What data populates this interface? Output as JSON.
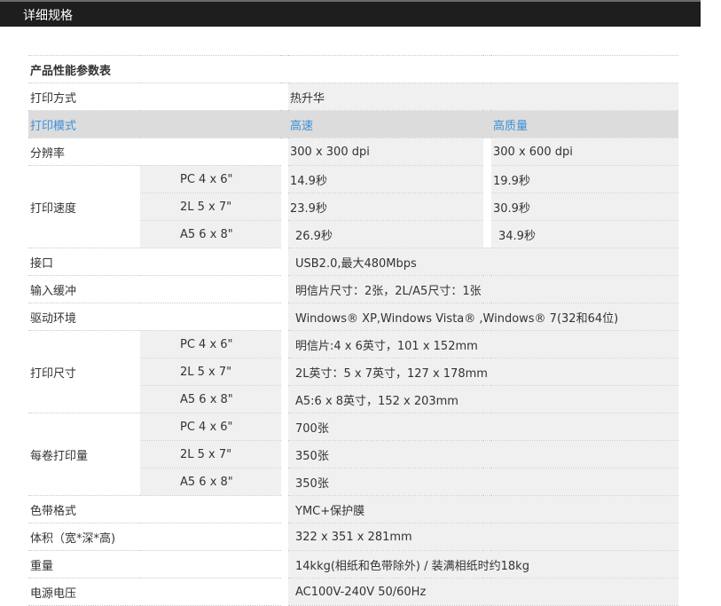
{
  "header": {
    "title": "详细规格"
  },
  "table": {
    "title": "产品性能参数表",
    "method": {
      "label": "打印方式",
      "value": "热升华"
    },
    "mode": {
      "label": "打印模式",
      "col1": "高速",
      "col2": "高质量"
    },
    "resolution": {
      "label": "分辨率",
      "col1": "300 x 300 dpi",
      "col2": "300 x 600 dpi"
    },
    "speed": {
      "label": "打印速度",
      "rows": [
        {
          "size": "PC 4 x 6\"",
          "col1": "14.9秒",
          "col2": "19.9秒"
        },
        {
          "size": "2L 5 x 7\"",
          "col1": "23.9秒",
          "col2": "30.9秒"
        },
        {
          "size": "A5 6 x 8\"",
          "col1": "26.9秒",
          "col2": "34.9秒"
        }
      ]
    },
    "interface": {
      "label": "接口",
      "value": "USB2.0,最大480Mbps"
    },
    "buffer": {
      "label": "输入缓冲",
      "value": "明信片尺寸：2张，2L/A5尺寸：1张"
    },
    "driver": {
      "label": "驱动环境",
      "value": "Windows® XP,Windows Vista® ,Windows® 7(32和64位)"
    },
    "print_size": {
      "label": "打印尺寸",
      "rows": [
        {
          "size": "PC 4 x 6\"",
          "value": "明信片:4 x 6英寸，101 x 152mm"
        },
        {
          "size": "2L 5 x 7\"",
          "value": "2L英寸：5 x 7英寸，127 x 178mm"
        },
        {
          "size": "A5 6 x 8\"",
          "value": "A5:6 x 8英寸，152 x 203mm"
        }
      ]
    },
    "per_roll": {
      "label": "每卷打印量",
      "rows": [
        {
          "size": "PC 4 x 6\"",
          "value": "700张"
        },
        {
          "size": "2L 5 x 7\"",
          "value": "350张"
        },
        {
          "size": "A5 6 x 8\"",
          "value": "350张"
        }
      ]
    },
    "ribbon": {
      "label": "色带格式",
      "value": "YMC+保护膜"
    },
    "dimensions": {
      "label": "体积（宽*深*高)",
      "value": "322 x 351 x 281mm"
    },
    "weight": {
      "label": "重量",
      "value": "14kkg(相纸和色带除外) / 装满相纸时约18kg"
    },
    "power": {
      "label": "电源电压",
      "value": "AC100V-240V 50/60Hz"
    }
  },
  "colors": {
    "header_bg": "#1e1e1e",
    "accent": "#3d8fd6",
    "cell_bg": "#f0f0f0",
    "mode_bg": "#dcdcdc"
  }
}
